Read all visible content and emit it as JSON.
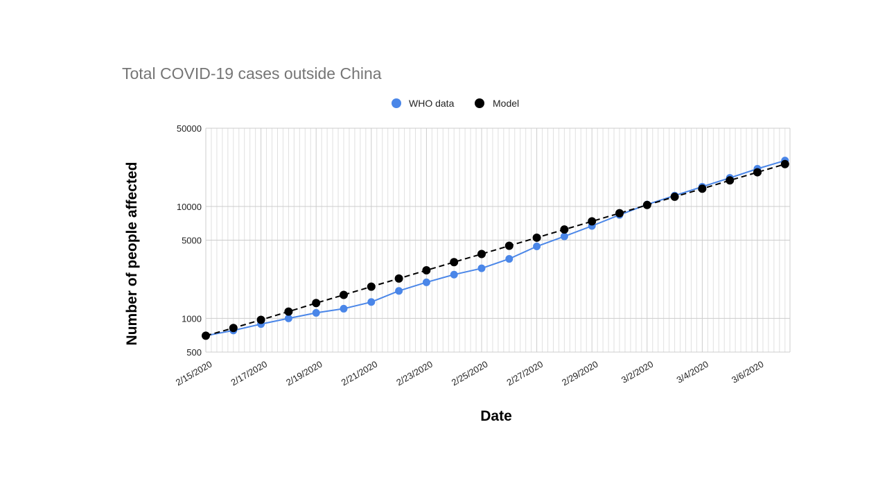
{
  "chart_data": {
    "type": "line",
    "title": "Total COVID-19 cases outside China",
    "xlabel": "Date",
    "ylabel": "Number of people affected",
    "y_scale": "log",
    "ylim": [
      500,
      50000
    ],
    "xlim": [
      "2/15/2020",
      "3/8/2020"
    ],
    "y_ticks": [
      {
        "value": 500,
        "label": "500"
      },
      {
        "value": 1000,
        "label": "1000"
      },
      {
        "value": 5000,
        "label": "5000"
      },
      {
        "value": 10000,
        "label": "10000"
      },
      {
        "value": 50000,
        "label": "50000"
      }
    ],
    "x_tick_labels": [
      "2/15/2020",
      "2/17/2020",
      "2/19/2020",
      "2/21/2020",
      "2/23/2020",
      "2/25/2020",
      "2/27/2020",
      "2/29/2020",
      "3/2/2020",
      "3/4/2020",
      "3/6/2020"
    ],
    "grid": true,
    "legend_position": "top",
    "x": [
      "2/15/2020",
      "2/16/2020",
      "2/17/2020",
      "2/18/2020",
      "2/19/2020",
      "2/20/2020",
      "2/21/2020",
      "2/22/2020",
      "2/23/2020",
      "2/24/2020",
      "2/25/2020",
      "2/26/2020",
      "2/27/2020",
      "2/28/2020",
      "2/29/2020",
      "3/1/2020",
      "3/2/2020",
      "3/3/2020",
      "3/4/2020",
      "3/5/2020",
      "3/6/2020",
      "3/7/2020"
    ],
    "series": [
      {
        "name": "WHO data",
        "color": "#4a86e8",
        "line_style": "solid",
        "values": [
          700,
          780,
          890,
          1000,
          1120,
          1220,
          1400,
          1760,
          2100,
          2460,
          2800,
          3400,
          4400,
          5400,
          6700,
          8400,
          10400,
          12500,
          15000,
          18000,
          21700,
          25700
        ]
      },
      {
        "name": "Model",
        "color": "#000000",
        "line_style": "dashed",
        "values": [
          700,
          820,
          970,
          1150,
          1370,
          1620,
          1920,
          2270,
          2690,
          3180,
          3760,
          4450,
          5260,
          6220,
          7360,
          8710,
          10300,
          12200,
          14400,
          17100,
          20200,
          23900
        ]
      }
    ]
  }
}
